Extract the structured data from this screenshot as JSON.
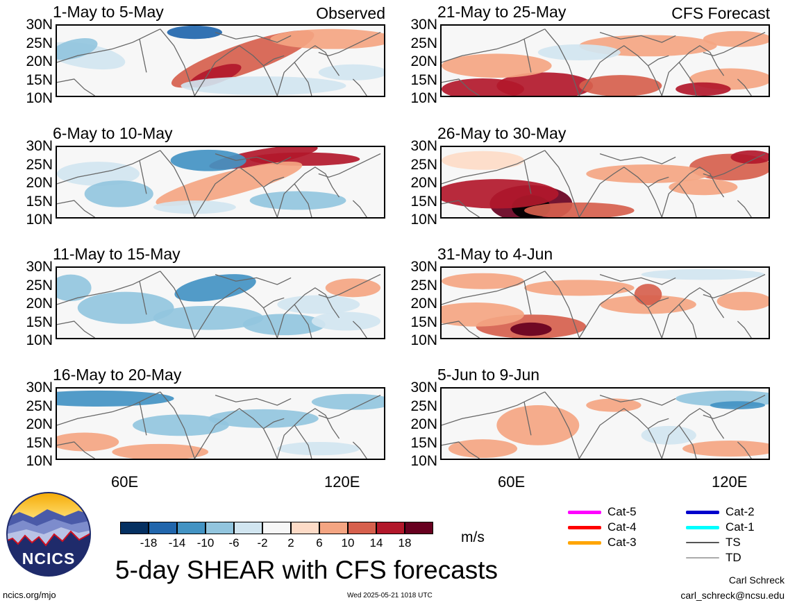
{
  "panels": [
    {
      "id": "p1",
      "title": "1-May to 5-May",
      "tag": "Observed",
      "col": 0,
      "row": 0
    },
    {
      "id": "p2",
      "title": "6-May to 10-May",
      "tag": "",
      "col": 0,
      "row": 1
    },
    {
      "id": "p3",
      "title": "11-May to 15-May",
      "tag": "",
      "col": 0,
      "row": 2
    },
    {
      "id": "p4",
      "title": "16-May to 20-May",
      "tag": "",
      "col": 0,
      "row": 3
    },
    {
      "id": "p5",
      "title": "21-May to 25-May",
      "tag": "CFS Forecast",
      "col": 1,
      "row": 0
    },
    {
      "id": "p6",
      "title": "26-May to 30-May",
      "tag": "",
      "col": 1,
      "row": 1
    },
    {
      "id": "p7",
      "title": "31-May to 4-Jun",
      "tag": "",
      "col": 1,
      "row": 2
    },
    {
      "id": "p8",
      "title": "5-Jun to 9-Jun",
      "tag": "",
      "col": 1,
      "row": 3
    }
  ],
  "lat_labels": [
    "30N",
    "25N",
    "20N",
    "15N",
    "10N"
  ],
  "lon_labels": [
    "60E",
    "120E"
  ],
  "colorbar": {
    "colors": [
      "#053061",
      "#2166ac",
      "#4393c3",
      "#92c5de",
      "#d1e5f0",
      "#f7f7f7",
      "#fddbc7",
      "#f4a582",
      "#d6604d",
      "#b2182b",
      "#67001f"
    ],
    "labels": [
      "-18",
      "-14",
      "-10",
      "-6",
      "-2",
      "2",
      "6",
      "10",
      "14",
      "18"
    ],
    "unit": "m/s"
  },
  "legend": [
    {
      "label": "Cat-5",
      "color": "#ff00ff"
    },
    {
      "label": "Cat-4",
      "color": "#ff0000"
    },
    {
      "label": "Cat-3",
      "color": "#ffa500"
    },
    {
      "label": "Cat-2",
      "color": "#0000cc"
    },
    {
      "label": "Cat-1",
      "color": "#00ffff"
    },
    {
      "label": "TS",
      "color": "#555555"
    },
    {
      "label": "TD",
      "color": "#aaaaaa"
    }
  ],
  "footer": {
    "main_title": "5-day SHEAR with CFS forecasts",
    "logo_text": "NCICS",
    "left_url": "ncics.org/mjo",
    "timestamp": "Wed 2025-05-21 1018 UTC",
    "author": "Carl Schreck",
    "email": "carl_schreck@ncsu.edu"
  }
}
